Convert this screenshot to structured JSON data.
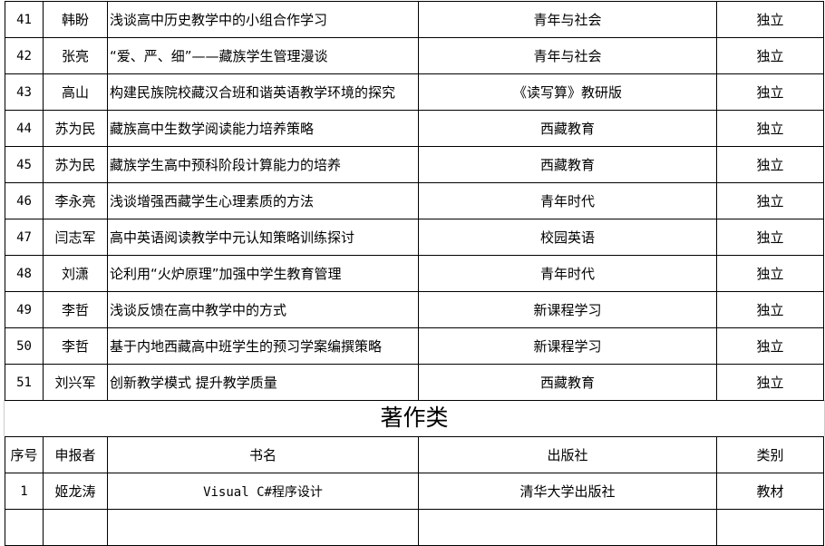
{
  "papers": [
    {
      "no": "41",
      "author": "韩盼",
      "title": "浅谈高中历史教学中的小组合作学习",
      "journal": "青年与社会",
      "type": "独立"
    },
    {
      "no": "42",
      "author": "张亮",
      "title": "“爱、严、细”——藏族学生管理漫谈",
      "journal": "青年与社会",
      "type": "独立"
    },
    {
      "no": "43",
      "author": "高山",
      "title": "构建民族院校藏汉合班和谐英语教学环境的探究",
      "journal": "《读写算》教研版",
      "type": "独立"
    },
    {
      "no": "44",
      "author": "苏为民",
      "title": "藏族高中生数学阅读能力培养策略",
      "journal": "西藏教育",
      "type": "独立"
    },
    {
      "no": "45",
      "author": "苏为民",
      "title": "藏族学生高中预科阶段计算能力的培养",
      "journal": "西藏教育",
      "type": "独立"
    },
    {
      "no": "46",
      "author": "李永亮",
      "title": "浅谈增强西藏学生心理素质的方法",
      "journal": "青年时代",
      "type": "独立"
    },
    {
      "no": "47",
      "author": "闫志军",
      "title": "高中英语阅读教学中元认知策略训练探讨",
      "journal": "校园英语",
      "type": "独立"
    },
    {
      "no": "48",
      "author": "刘潇",
      "title": "论利用“火炉原理”加强中学生教育管理",
      "journal": "青年时代",
      "type": "独立"
    },
    {
      "no": "49",
      "author": "李哲",
      "title": "浅谈反馈在高中教学中的方式",
      "journal": "新课程学习",
      "type": "独立"
    },
    {
      "no": "50",
      "author": "李哲",
      "title": "基于内地西藏高中班学生的预习学案编撰策略",
      "journal": "新课程学习",
      "type": "独立"
    },
    {
      "no": "51",
      "author": "刘兴军",
      "title": "创新教学模式 提升教学质量",
      "journal": "西藏教育",
      "type": "独立"
    }
  ],
  "books_section": {
    "title": "著作类",
    "headers": {
      "no": "序号",
      "author": "申报者",
      "title": "书名",
      "publisher": "出版社",
      "type": "类别"
    },
    "rows": [
      {
        "no": "1",
        "author": "姬龙涛",
        "title": "Visual C#程序设计",
        "publisher": "清华大学出版社",
        "type": "教材"
      }
    ]
  }
}
